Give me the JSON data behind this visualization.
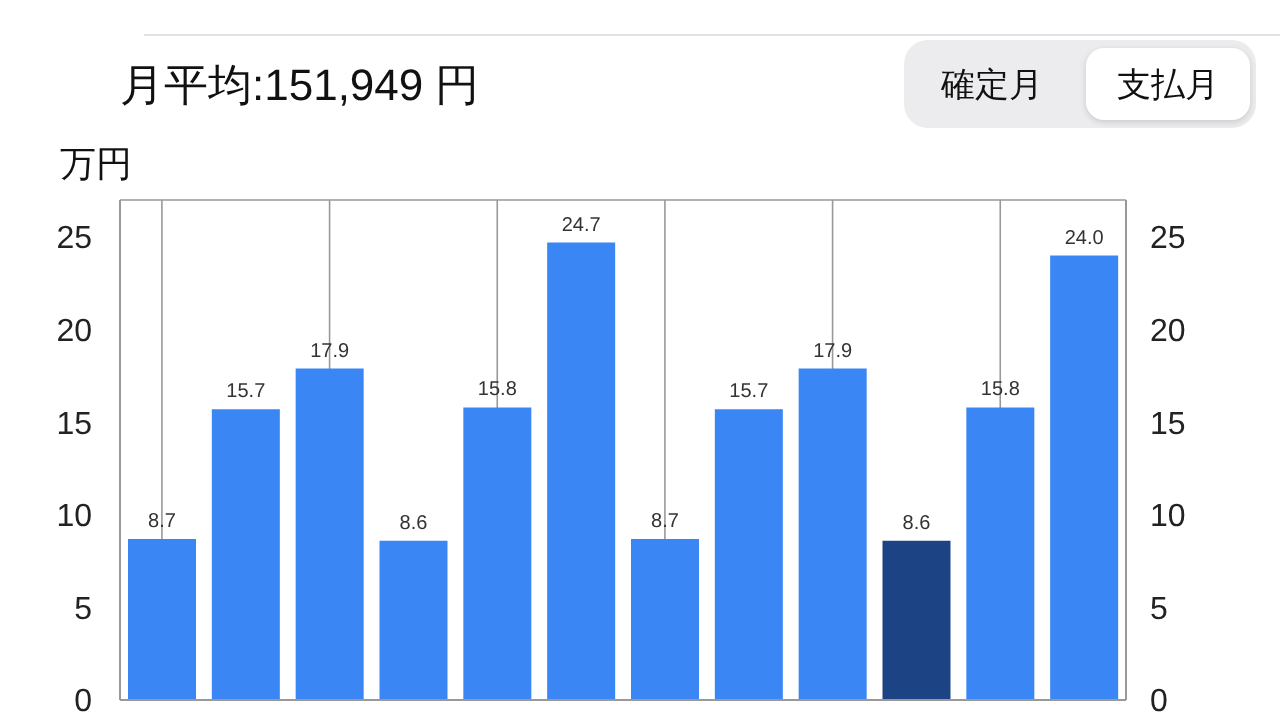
{
  "chart_data": {
    "type": "bar",
    "title": "月平均:151,949 円",
    "ylabel": "万円",
    "annotations": [
      "確定月",
      "支払月"
    ],
    "categories": [
      null,
      null,
      null,
      null,
      null,
      null,
      null,
      null,
      null,
      null,
      null,
      null
    ],
    "values": [
      8.7,
      15.7,
      17.9,
      8.6,
      15.8,
      24.7,
      8.7,
      15.7,
      17.9,
      8.6,
      15.8,
      24.0
    ],
    "colors": [
      "#3a86f4",
      "#3a86f4",
      "#3a86f4",
      "#3a86f4",
      "#3a86f4",
      "#3a86f4",
      "#3a86f4",
      "#3a86f4",
      "#3a86f4",
      "#1c4484",
      "#3a86f4",
      "#3a86f4"
    ],
    "ylim": [
      0,
      27
    ],
    "yticks": [
      0,
      5,
      10,
      15,
      20,
      25
    ],
    "y2lim": [
      0,
      27
    ],
    "y2ticks": [
      0,
      5,
      10,
      15,
      20,
      25
    ],
    "value_labels": [
      "8.7",
      "15.7",
      "17.9",
      "8.6",
      "15.8",
      "24.7",
      "8.7",
      "15.7",
      "17.9",
      "8.6",
      "15.8",
      "24.0"
    ],
    "grid": true
  }
}
